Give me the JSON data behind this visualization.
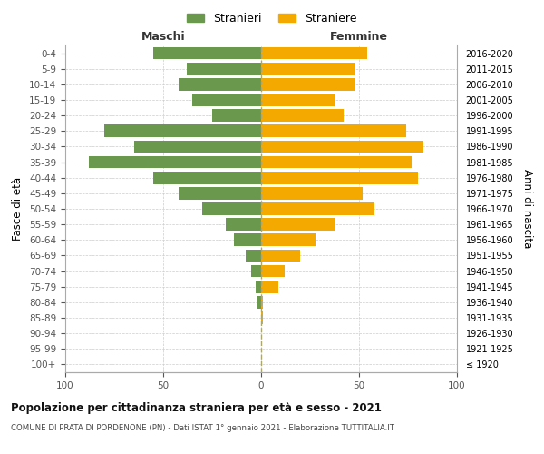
{
  "age_groups": [
    "100+",
    "95-99",
    "90-94",
    "85-89",
    "80-84",
    "75-79",
    "70-74",
    "65-69",
    "60-64",
    "55-59",
    "50-54",
    "45-49",
    "40-44",
    "35-39",
    "30-34",
    "25-29",
    "20-24",
    "15-19",
    "10-14",
    "5-9",
    "0-4"
  ],
  "birth_years": [
    "≤ 1920",
    "1921-1925",
    "1926-1930",
    "1931-1935",
    "1936-1940",
    "1941-1945",
    "1946-1950",
    "1951-1955",
    "1956-1960",
    "1961-1965",
    "1966-1970",
    "1971-1975",
    "1976-1980",
    "1981-1985",
    "1986-1990",
    "1991-1995",
    "1996-2000",
    "2001-2005",
    "2006-2010",
    "2011-2015",
    "2016-2020"
  ],
  "males": [
    0,
    0,
    0,
    0,
    2,
    3,
    5,
    8,
    14,
    18,
    30,
    42,
    55,
    88,
    65,
    80,
    25,
    35,
    42,
    38,
    55
  ],
  "females": [
    0,
    0,
    0,
    1,
    1,
    9,
    12,
    20,
    28,
    38,
    58,
    52,
    80,
    77,
    83,
    74,
    42,
    38,
    48,
    48,
    54
  ],
  "male_color": "#6a994e",
  "female_color": "#f4a900",
  "background_color": "#ffffff",
  "grid_color": "#cccccc",
  "title": "Popolazione per cittadinanza straniera per età e sesso - 2021",
  "subtitle": "COMUNE DI PRATA DI PORDENONE (PN) - Dati ISTAT 1° gennaio 2021 - Elaborazione TUTTITALIA.IT",
  "ylabel_left": "Fasce di età",
  "ylabel_right": "Anni di nascita",
  "xlabel_left": "Maschi",
  "xlabel_right": "Femmine",
  "legend_male": "Stranieri",
  "legend_female": "Straniere",
  "xlim": 100,
  "bar_height": 0.8
}
